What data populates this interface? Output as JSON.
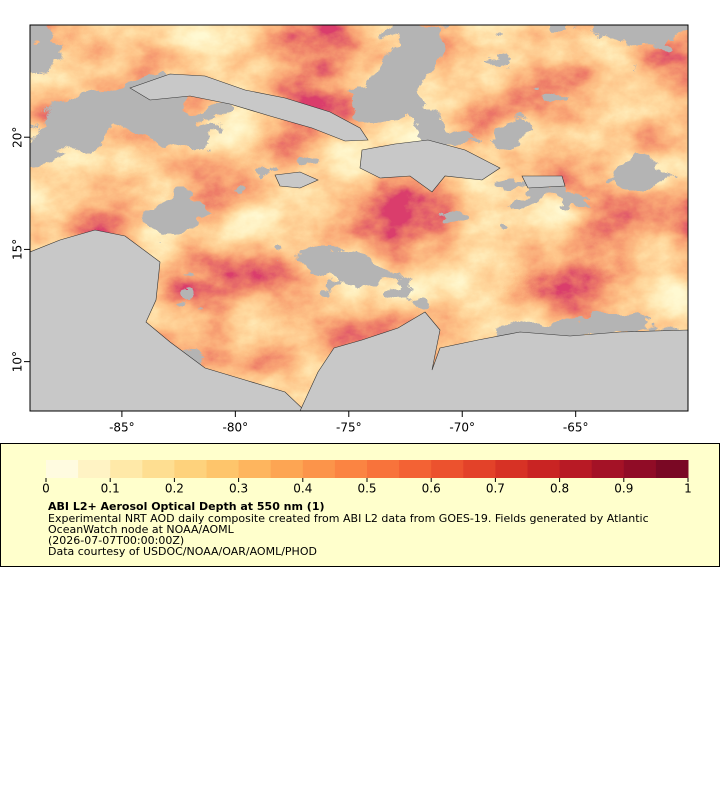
{
  "chart_data": {
    "type": "map",
    "xlim": [
      -89.05,
      -60.05
    ],
    "ylim": [
      7.8,
      25
    ],
    "xticks": [
      {
        "value": -85,
        "label": "-85°"
      },
      {
        "value": -80,
        "label": "-80°"
      },
      {
        "value": -75,
        "label": "-75°"
      },
      {
        "value": -70,
        "label": "-70°"
      },
      {
        "value": -65,
        "label": "-65°"
      }
    ],
    "yticks": [
      {
        "value": 10,
        "label": "10°"
      },
      {
        "value": 15,
        "label": "15°"
      },
      {
        "value": 20,
        "label": "20°"
      }
    ],
    "colorbar_lim": [
      0,
      1
    ],
    "colorbar_ticks": [
      0,
      0.1,
      0.2,
      0.3,
      0.4,
      0.5,
      0.6,
      0.7,
      0.8,
      0.9,
      1
    ],
    "colors": [
      "#fffbe0",
      "#fff3c4",
      "#ffe9a8",
      "#fede91",
      "#fed27c",
      "#fec56b",
      "#feb55e",
      "#fda553",
      "#fc944a",
      "#fb8442",
      "#f8733b",
      "#f36234",
      "#ec522e",
      "#e34229",
      "#d73225",
      "#c92423",
      "#b81a25",
      "#a41226",
      "#900c26",
      "#7a0824"
    ],
    "title": "ABI L2+ Aerosol Optical Depth at 550 nm (1)",
    "description": [
      "Experimental NRT AOD daily composite created from ABI L2 data from GOES-19. Fields generated by Atlantic",
      "OceanWatch node at NOAA/AOML",
      "(2026-07-07T00:00:00Z)",
      "Data courtesy of USDOC/NOAA/OAR/AOML/PHOD"
    ]
  }
}
